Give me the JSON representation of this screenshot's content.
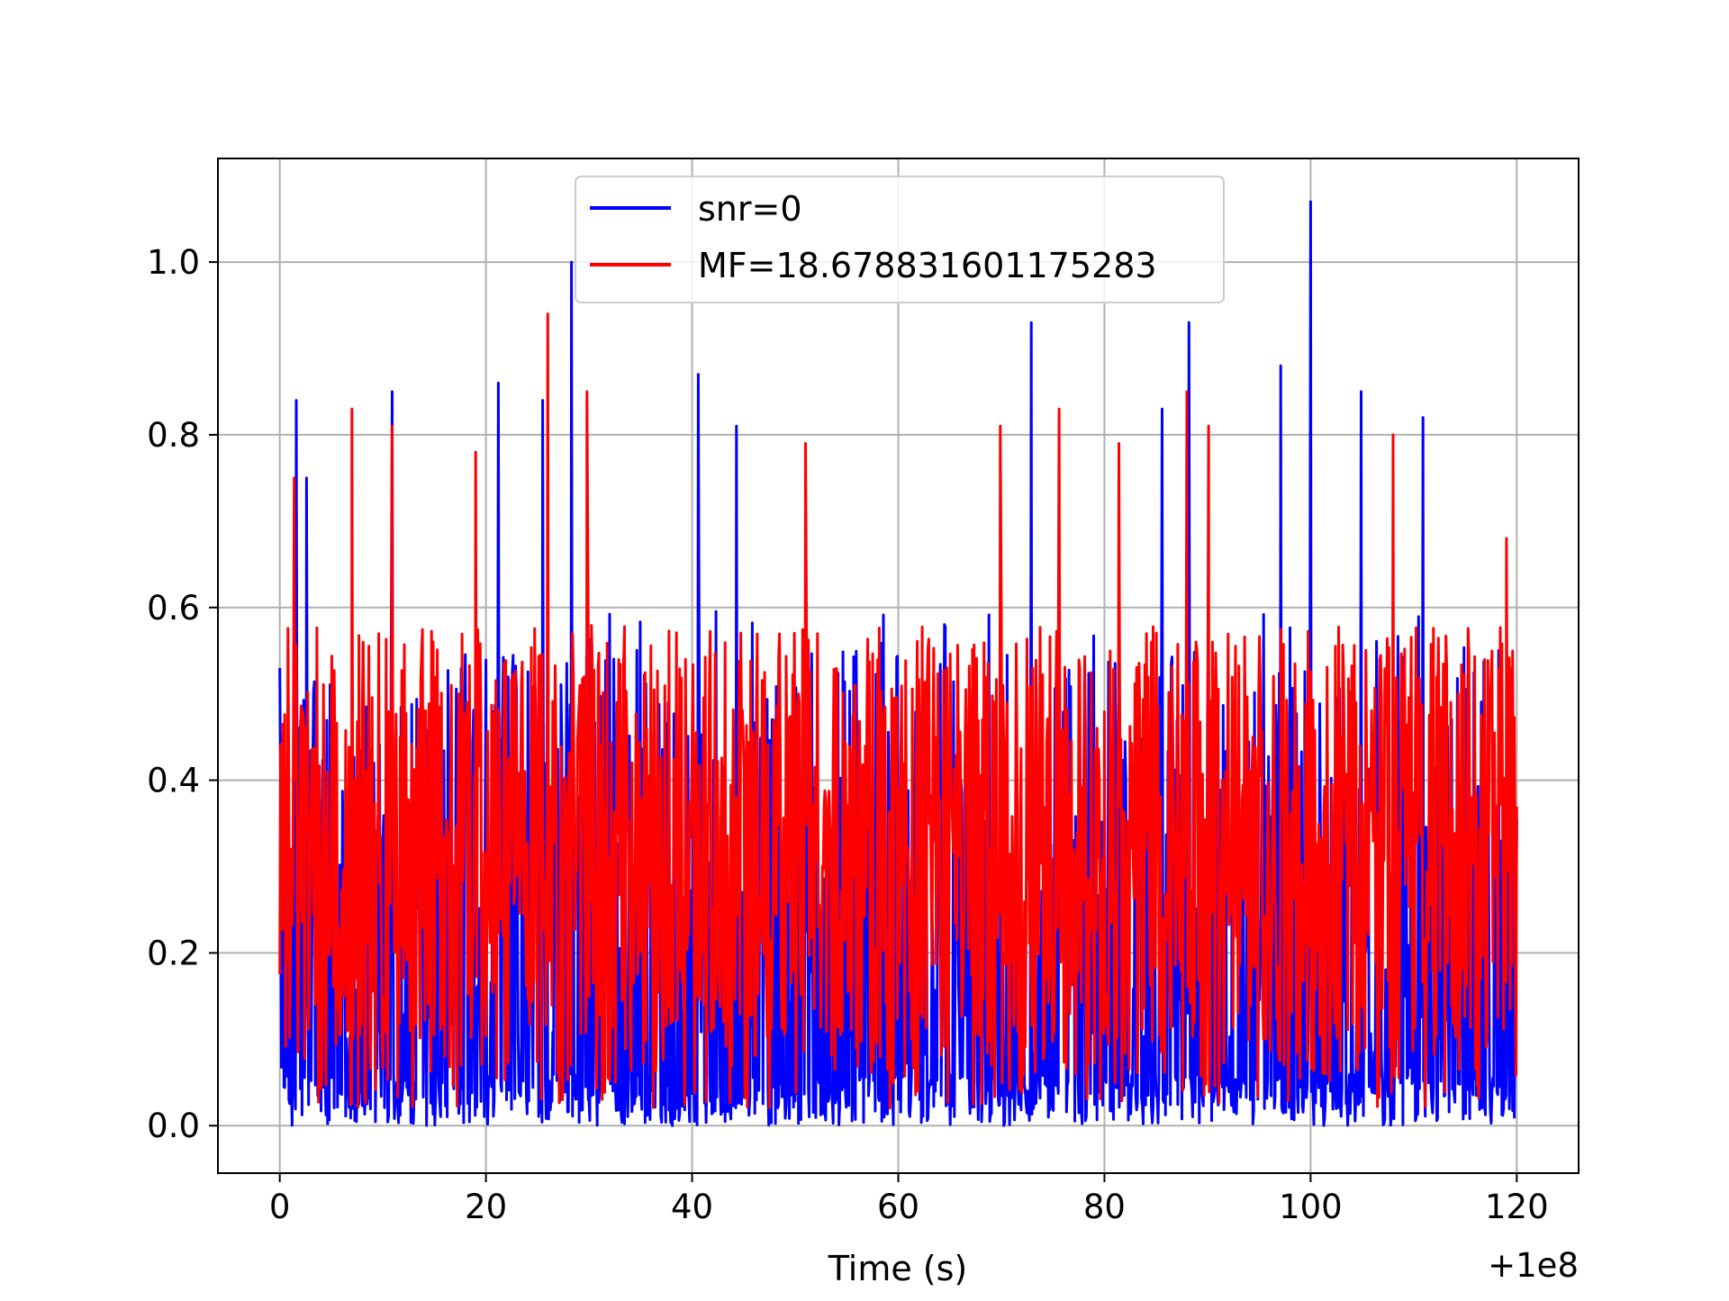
{
  "chart_data": {
    "type": "line",
    "title": "",
    "xlabel": "Time (s)",
    "ylabel": "",
    "x_offset_label": "+1e8",
    "xlim": [
      -6,
      126
    ],
    "ylim": [
      -0.055,
      1.12
    ],
    "xticks": [
      0,
      20,
      40,
      60,
      80,
      100,
      120
    ],
    "xtick_labels": [
      "0",
      "20",
      "40",
      "60",
      "80",
      "100",
      "120"
    ],
    "yticks": [
      0.0,
      0.2,
      0.4,
      0.6,
      0.8,
      1.0
    ],
    "ytick_labels": [
      "0.0",
      "0.2",
      "0.4",
      "0.6",
      "0.8",
      "1.0"
    ],
    "grid": true,
    "legend_position": "top-center",
    "x_range": [
      0,
      120
    ],
    "series": [
      {
        "name": "snr=0",
        "color": "#0000ff",
        "peaks": [
          {
            "x": 0.0,
            "y": 0.53
          },
          {
            "x": 1.6,
            "y": 0.84
          },
          {
            "x": 2.6,
            "y": 0.75
          },
          {
            "x": 10.9,
            "y": 0.85
          },
          {
            "x": 21.2,
            "y": 0.86
          },
          {
            "x": 25.5,
            "y": 0.84
          },
          {
            "x": 28.3,
            "y": 1.0
          },
          {
            "x": 40.6,
            "y": 0.87
          },
          {
            "x": 44.3,
            "y": 0.81
          },
          {
            "x": 72.9,
            "y": 0.93
          },
          {
            "x": 85.6,
            "y": 0.83
          },
          {
            "x": 88.2,
            "y": 0.93
          },
          {
            "x": 97.1,
            "y": 0.88
          },
          {
            "x": 100.0,
            "y": 1.07
          },
          {
            "x": 104.9,
            "y": 0.85
          },
          {
            "x": 110.9,
            "y": 0.82
          }
        ],
        "typical_range": [
          0.0,
          0.6
        ]
      },
      {
        "name": "MF=18.678831601175283",
        "color": "#ff0000",
        "peaks": [
          {
            "x": 1.4,
            "y": 0.75
          },
          {
            "x": 7.0,
            "y": 0.83
          },
          {
            "x": 10.9,
            "y": 0.81
          },
          {
            "x": 19.0,
            "y": 0.78
          },
          {
            "x": 26.0,
            "y": 0.94
          },
          {
            "x": 29.8,
            "y": 0.85
          },
          {
            "x": 51.0,
            "y": 0.79
          },
          {
            "x": 69.9,
            "y": 0.81
          },
          {
            "x": 75.6,
            "y": 0.83
          },
          {
            "x": 81.4,
            "y": 0.79
          },
          {
            "x": 88.0,
            "y": 0.85
          },
          {
            "x": 90.1,
            "y": 0.81
          },
          {
            "x": 108.0,
            "y": 0.8
          },
          {
            "x": 119.0,
            "y": 0.68
          }
        ],
        "typical_range": [
          0.02,
          0.6
        ]
      }
    ]
  },
  "colors": {
    "series_1": "#0000ff",
    "series_2": "#ff0000",
    "grid": "#b0b0b0",
    "axes": "#000000"
  }
}
